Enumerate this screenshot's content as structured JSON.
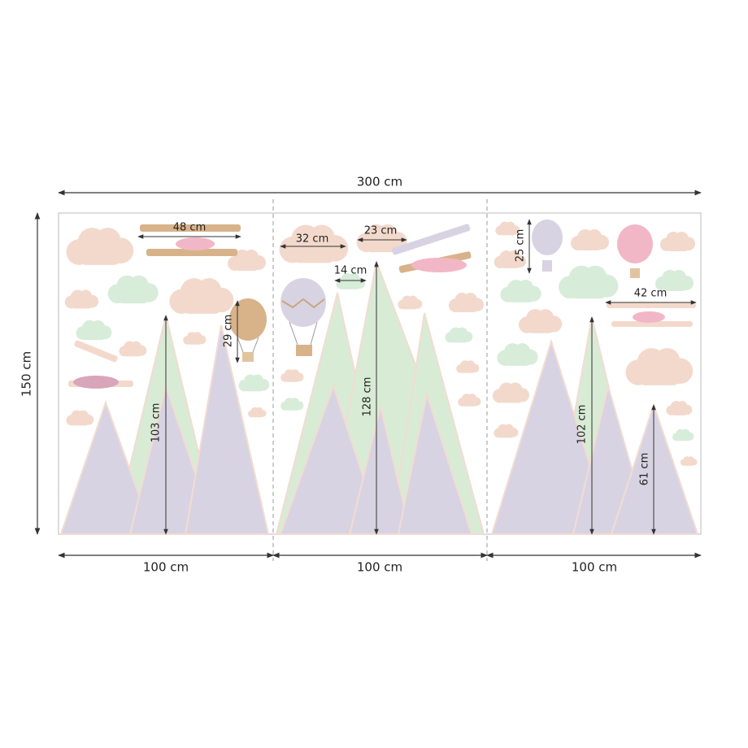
{
  "dimensions": {
    "total_width": "300 cm",
    "total_height": "150 cm",
    "panel_widths": [
      "100 cm",
      "100 cm",
      "100 cm"
    ]
  },
  "measurements": {
    "biplane_left": "48 cm",
    "cloud_large": "32 cm",
    "cloud_medium": "23 cm",
    "cloud_small": "14 cm",
    "balloon_lilac": "25 cm",
    "biplane_right": "42 cm",
    "balloon_dotted": "29 cm",
    "mountain_left": "103 cm",
    "mountain_middle": "128 cm",
    "mountain_right_tall": "102 cm",
    "mountain_right_small": "61 cm"
  }
}
